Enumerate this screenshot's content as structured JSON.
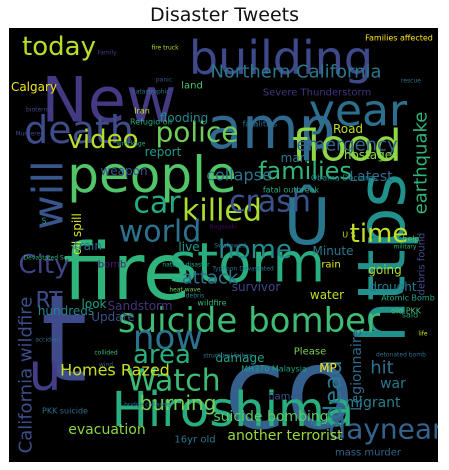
{
  "chart_data": {
    "type": "wordcloud",
    "title": "Disaster Tweets",
    "background": "#000000",
    "colormap": "viridis",
    "words": [
      {
        "text": "t",
        "color": "#3e4a89"
      },
      {
        "text": "co",
        "color": "#35608d"
      },
      {
        "text": "fire",
        "color": "#2fb47c"
      },
      {
        "text": "https",
        "color": "#21918c"
      },
      {
        "text": "New",
        "color": "#443a83"
      },
      {
        "text": "amp",
        "color": "#31688e"
      },
      {
        "text": "Hiroshima",
        "color": "#29af7f"
      },
      {
        "text": "storm",
        "color": "#28ae80"
      },
      {
        "text": "people",
        "color": "#52c569"
      },
      {
        "text": "building",
        "color": "#3e4989"
      },
      {
        "text": "flood",
        "color": "#8fd744"
      },
      {
        "text": "u",
        "color": "#433e85"
      },
      {
        "text": "Û",
        "color": "#2a768e"
      },
      {
        "text": "year",
        "color": "#2d708e"
      },
      {
        "text": "will",
        "color": "#39568c"
      },
      {
        "text": "death",
        "color": "#3e4c8a"
      },
      {
        "text": "suicide bomber",
        "color": "#3fbc73"
      },
      {
        "text": "daynear",
        "color": "#33638d"
      },
      {
        "text": "today",
        "color": "#b8de29"
      },
      {
        "text": "killed",
        "color": "#aadc32"
      },
      {
        "text": "families",
        "color": "#32b67a"
      },
      {
        "text": "police",
        "color": "#6ccd5a"
      },
      {
        "text": "crash",
        "color": "#3b528b"
      },
      {
        "text": "now",
        "color": "#2c728e"
      },
      {
        "text": "Watch",
        "color": "#3bbb75"
      },
      {
        "text": "video",
        "color": "#b5de2b"
      },
      {
        "text": "world",
        "color": "#2c728e"
      },
      {
        "text": "car",
        "color": "#25ab82"
      },
      {
        "text": "time",
        "color": "#c0df25"
      },
      {
        "text": "home",
        "color": "#238a8d"
      },
      {
        "text": "area",
        "color": "#29af7f"
      },
      {
        "text": "City",
        "color": "#414487"
      },
      {
        "text": "RT",
        "color": "#3d4d8a"
      },
      {
        "text": "earthquake",
        "color": "#31b57b"
      },
      {
        "text": "Northern California",
        "color": "#2a788e"
      },
      {
        "text": "dead",
        "color": "#2a788e"
      },
      {
        "text": "hit",
        "color": "#2c718e"
      },
      {
        "text": "California wildfire",
        "color": "#3d4e8a"
      },
      {
        "text": "burning",
        "color": "#75d054"
      },
      {
        "text": "emergency",
        "color": "#32648e"
      },
      {
        "text": "attack",
        "color": "#2d718e"
      },
      {
        "text": "collapse",
        "color": "#2c738e"
      },
      {
        "text": "Latest",
        "color": "#31678e"
      },
      {
        "text": "Homes Razed",
        "color": "#c8e020"
      },
      {
        "text": "suicide bombing",
        "color": "#5ec962"
      },
      {
        "text": "evacuation",
        "color": "#8bd646"
      },
      {
        "text": "another terrorist",
        "color": "#9bd93c"
      },
      {
        "text": "Legionnaire",
        "color": "#306a8e"
      },
      {
        "text": "migrant",
        "color": "#27808e"
      },
      {
        "text": "war",
        "color": "#2a778e"
      },
      {
        "text": "flooding",
        "color": "#238a8d"
      },
      {
        "text": "Calgary",
        "color": "#f1e51d"
      },
      {
        "text": "weapon",
        "color": "#3a548c"
      },
      {
        "text": "survivor",
        "color": "#3f4788"
      },
      {
        "text": "drought",
        "color": "#29798e"
      },
      {
        "text": "water",
        "color": "#bddf26"
      },
      {
        "text": "Sandstorm",
        "color": "#46337e"
      },
      {
        "text": "oil spill",
        "color": "#d5e21a"
      },
      {
        "text": "live",
        "color": "#1f9e89"
      },
      {
        "text": "man",
        "color": "#2b748e"
      },
      {
        "text": "Road",
        "color": "#bddf26"
      },
      {
        "text": "hostage",
        "color": "#86d549"
      },
      {
        "text": "bomb",
        "color": "#48186a"
      },
      {
        "text": "Minute",
        "color": "#2a788e"
      },
      {
        "text": "Update",
        "color": "#3b528b"
      },
      {
        "text": "damage",
        "color": "#1fa088"
      },
      {
        "text": "MP",
        "color": "#fde725"
      },
      {
        "text": "going",
        "color": "#addc30"
      },
      {
        "text": "train",
        "color": "#2d708e"
      },
      {
        "text": "hundreds",
        "color": "#25858e"
      },
      {
        "text": "look",
        "color": "#1fa187"
      },
      {
        "text": "report",
        "color": "#1f9a8a"
      },
      {
        "text": "Severe Thunderstorm",
        "color": "#46327e"
      },
      {
        "text": "rain",
        "color": "#e5e419"
      },
      {
        "text": "land",
        "color": "#4ac16d"
      },
      {
        "text": "flames",
        "color": "#3b518b"
      },
      {
        "text": "mass murder",
        "color": "#34618d"
      },
      {
        "text": "debris found",
        "color": "#3e4c8a"
      },
      {
        "text": "Please",
        "color": "#7ad151"
      },
      {
        "text": "16yr old",
        "color": "#2b758e"
      },
      {
        "text": "Obama Declares",
        "color": "#24878e"
      },
      {
        "text": "Atomic Bomb",
        "color": "#22a785"
      },
      {
        "text": "Families affected",
        "color": "#fde725"
      },
      {
        "text": "fatal outbreak",
        "color": "#25ac82"
      },
      {
        "text": "Iran",
        "color": "#c2df23"
      },
      {
        "text": "wildfire",
        "color": "#34b679"
      },
      {
        "text": "PKK suicide",
        "color": "#2e6e8e"
      },
      {
        "text": "MH370 Malaysia",
        "color": "#1fa287"
      },
      {
        "text": "old PKK",
        "color": "#4ac16d"
      },
      {
        "text": "said",
        "color": "#1fa188"
      },
      {
        "text": "fatalities",
        "color": "#2e6f8e"
      },
      {
        "text": "S",
        "color": "#20a386"
      },
      {
        "text": "U S",
        "color": "#bade28"
      },
      {
        "text": "help",
        "color": "#4ec36b"
      },
      {
        "text": "Refugio oil",
        "color": "#27ad81"
      },
      {
        "text": "collided",
        "color": "#3dbc74"
      },
      {
        "text": "Devastated Seipan",
        "color": "#2fb47c"
      },
      {
        "text": "Swallowed",
        "color": "#2d718e"
      },
      {
        "text": "natural disaster",
        "color": "#20a486"
      },
      {
        "text": "accident",
        "color": "#31678e"
      },
      {
        "text": "Family",
        "color": "#433e85"
      },
      {
        "text": "structural failure",
        "color": "#2d708e"
      },
      {
        "text": "detonated bomb",
        "color": "#2e6e8e"
      },
      {
        "text": "fire truck",
        "color": "#ade029"
      },
      {
        "text": "Typhoon Devastated",
        "color": "#2d718e"
      },
      {
        "text": "wind",
        "color": "#3b528b"
      },
      {
        "text": "bridge collapse",
        "color": "#2c718e"
      },
      {
        "text": "life",
        "color": "#d2e21b"
      },
      {
        "text": "Murderer",
        "color": "#3f4788"
      },
      {
        "text": "catastrophic",
        "color": "#2a788e"
      },
      {
        "text": "debris",
        "color": "#25848e"
      },
      {
        "text": "military",
        "color": "#32b67a"
      },
      {
        "text": "Nagasaki",
        "color": "#46085c"
      },
      {
        "text": "ignored",
        "color": "#1e9c89"
      },
      {
        "text": "panic",
        "color": "#39568c"
      },
      {
        "text": "wreckage",
        "color": "#25ab82"
      },
      {
        "text": "bioterror",
        "color": "#3e4989"
      },
      {
        "text": "heat wave",
        "color": "#73d056"
      },
      {
        "text": "rescue",
        "color": "#2c738e"
      }
    ]
  }
}
